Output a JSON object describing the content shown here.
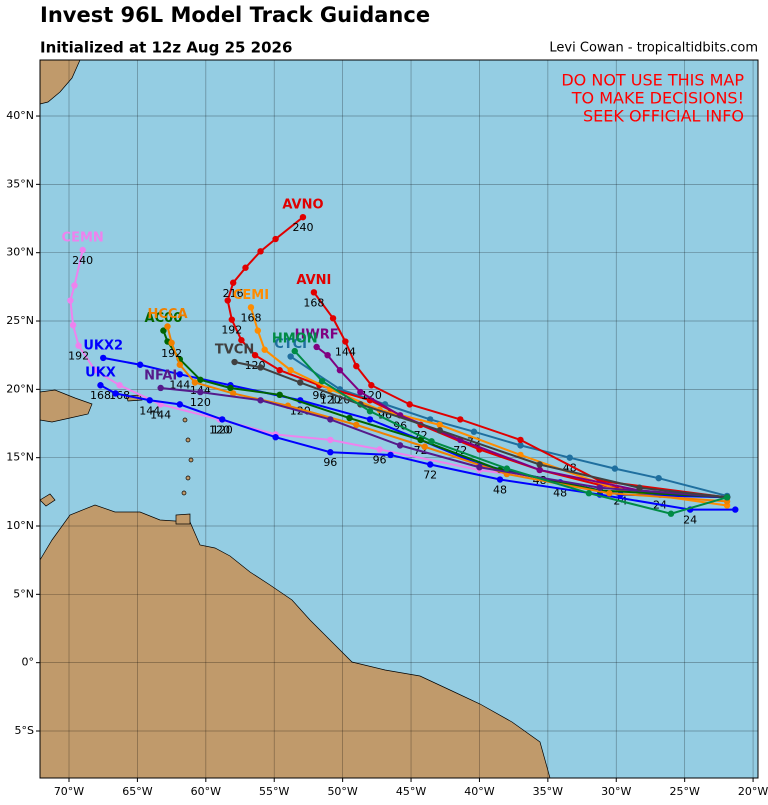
{
  "chart_data": {
    "type": "track-map",
    "title": "Invest 96L Model Track Guidance",
    "subtitle": "Initialized at 12z Aug 25 2026",
    "credit": "Levi Cowan - tropicaltidbits.com",
    "warning": [
      "DO NOT USE THIS MAP",
      "TO MAKE DECISIONS!",
      "SEEK OFFICIAL INFO"
    ],
    "xlim": [
      -72.12,
      -19.64
    ],
    "ylim": [
      -8.44,
      44.1
    ],
    "xticks": [
      {
        "value": -70,
        "label": "70°W"
      },
      {
        "value": -65,
        "label": "65°W"
      },
      {
        "value": -60,
        "label": "60°W"
      },
      {
        "value": -55,
        "label": "55°W"
      },
      {
        "value": -50,
        "label": "50°W"
      },
      {
        "value": -45,
        "label": "45°W"
      },
      {
        "value": -40,
        "label": "40°W"
      },
      {
        "value": -35,
        "label": "35°W"
      },
      {
        "value": -30,
        "label": "30°W"
      },
      {
        "value": -25,
        "label": "25°W"
      },
      {
        "value": -20,
        "label": "20°W"
      }
    ],
    "yticks": [
      {
        "value": -5,
        "label": "5°S"
      },
      {
        "value": 0,
        "label": "0°"
      },
      {
        "value": 5,
        "label": "5°N"
      },
      {
        "value": 10,
        "label": "10°N"
      },
      {
        "value": 15,
        "label": "15°N"
      },
      {
        "value": 20,
        "label": "20°N"
      },
      {
        "value": 25,
        "label": "25°N"
      },
      {
        "value": 30,
        "label": "30°N"
      },
      {
        "value": 35,
        "label": "35°N"
      },
      {
        "value": 40,
        "label": "40°N"
      }
    ],
    "grid": true,
    "tracks": [
      {
        "name": "CTCI",
        "color": "#1f6f9f",
        "lon": [
          -21.9,
          -26.9,
          -30.1,
          -33.4,
          -37.0,
          -40.4,
          -43.6,
          -46.9,
          -50.2,
          -53.8
        ],
        "lat": [
          12.2,
          13.5,
          14.2,
          15.0,
          15.9,
          16.9,
          17.8,
          18.9,
          20.0,
          22.4
        ],
        "hours": [
          null,
          null,
          null,
          48,
          null,
          72,
          null,
          96,
          120,
          null
        ]
      },
      {
        "name": "AVNO",
        "color": "#e00000",
        "lon": [
          -21.9,
          -26.8,
          -31.2,
          -35.6,
          -40.0,
          -44.3,
          -48.0,
          -51.7,
          -54.6,
          -56.4,
          -57.4,
          -58.1,
          -58.4,
          -58.0,
          -57.1,
          -56.0,
          -54.9,
          -52.9
        ],
        "lat": [
          12.1,
          12.3,
          13.0,
          14.1,
          15.6,
          17.4,
          19.2,
          20.3,
          21.4,
          22.5,
          23.6,
          25.1,
          26.5,
          27.8,
          28.9,
          30.1,
          31.0,
          32.6
        ],
        "hours": [
          null,
          24,
          null,
          48,
          null,
          72,
          null,
          96,
          null,
          120,
          null,
          192,
          null,
          216,
          null,
          null,
          null,
          240
        ]
      },
      {
        "name": "AVNI",
        "color": "#e00000",
        "lon": [
          -21.9,
          -31.2,
          -37.0,
          -41.4,
          -45.1,
          -47.9,
          -49.0,
          -49.8,
          -50.7,
          -52.1
        ],
        "lat": [
          12.1,
          13.3,
          16.3,
          17.8,
          18.9,
          20.3,
          21.7,
          23.5,
          25.2,
          27.1
        ],
        "hours": [
          null,
          null,
          null,
          null,
          null,
          120,
          null,
          144,
          null,
          168
        ]
      },
      {
        "name": "CEMN",
        "color": "#ee82ee",
        "lon": [
          -21.9,
          -31.2,
          -40.0,
          -47.3,
          -50.9,
          -54.9,
          -59.0,
          -63.3,
          -66.3,
          -68.1,
          -69.3,
          -69.7,
          -69.9,
          -69.6,
          -69.0
        ],
        "lat": [
          12.1,
          12.8,
          14.1,
          15.6,
          16.3,
          16.7,
          17.8,
          18.9,
          20.3,
          21.4,
          23.2,
          24.7,
          26.5,
          27.6,
          30.2
        ],
        "hours": [
          null,
          null,
          null,
          96,
          null,
          null,
          120,
          144,
          168,
          null,
          192,
          null,
          null,
          null,
          240
        ]
      },
      {
        "name": "CEMI",
        "color": "#ff8c00",
        "lon": [
          -21.9,
          -29.7,
          -37.0,
          -42.9,
          -47.3,
          -50.9,
          -53.8,
          -55.7,
          -56.2,
          -56.7
        ],
        "lat": [
          11.5,
          12.6,
          15.2,
          17.4,
          18.5,
          20.0,
          21.4,
          22.9,
          24.3,
          26.0
        ],
        "hours": [
          null,
          24,
          null,
          null,
          null,
          120,
          null,
          null,
          null,
          168
        ]
      },
      {
        "name": "HWRF",
        "color": "#800080",
        "lon": [
          -21.9,
          -28.3,
          -35.6,
          -41.4,
          -45.8,
          -48.7,
          -50.2,
          -51.1,
          -51.9
        ],
        "lat": [
          12.1,
          12.6,
          14.1,
          16.3,
          18.1,
          19.8,
          21.4,
          22.5,
          23.1
        ],
        "hours": [
          null,
          null,
          null,
          72,
          96,
          null,
          null,
          null,
          null
        ]
      },
      {
        "name": "UKX2",
        "color": "#0000ff",
        "lon": [
          -21.9,
          -29.7,
          -34.1,
          -40.0,
          -44.3,
          -48.0,
          -53.1,
          -58.2,
          -61.9,
          -64.8,
          -67.5
        ],
        "lat": [
          12.1,
          12.3,
          13.2,
          14.5,
          16.3,
          17.8,
          19.2,
          20.3,
          21.1,
          21.8,
          22.3
        ],
        "hours": [
          null,
          null,
          48,
          null,
          72,
          null,
          120,
          null,
          144,
          null,
          null
        ]
      },
      {
        "name": "UKX",
        "color": "#0000ff",
        "lon": [
          -21.3,
          -24.6,
          -31.2,
          -38.5,
          -43.6,
          -46.5,
          -50.9,
          -54.9,
          -58.8,
          -61.9,
          -64.1,
          -66.6,
          -67.7
        ],
        "lat": [
          11.2,
          11.2,
          12.3,
          13.4,
          14.5,
          15.2,
          15.4,
          16.5,
          17.8,
          18.9,
          19.2,
          19.7,
          20.3
        ],
        "hours": [
          null,
          24,
          null,
          48,
          72,
          null,
          96,
          null,
          120,
          null,
          144,
          null,
          168
        ]
      },
      {
        "name": "AC00",
        "color": "#006400",
        "lon": [
          -21.9,
          -31.2,
          -38.5,
          -44.3,
          -49.5,
          -54.6,
          -58.2,
          -60.4,
          -61.9,
          -62.8,
          -63.1
        ],
        "lat": [
          12.1,
          12.6,
          14.1,
          16.3,
          17.9,
          19.6,
          20.1,
          20.7,
          22.2,
          23.5,
          24.3
        ],
        "hours": [
          null,
          null,
          null,
          null,
          null,
          null,
          null,
          144,
          null,
          null,
          null
        ]
      },
      {
        "name": "HCCA",
        "color": "#f08000",
        "lon": [
          -21.9,
          -30.5,
          -38.0,
          -44.0,
          -49.0,
          -54.0,
          -58.0,
          -60.8,
          -61.9,
          -62.5,
          -62.8
        ],
        "lat": [
          11.8,
          12.4,
          13.8,
          15.8,
          17.4,
          18.8,
          19.7,
          20.5,
          21.8,
          23.4,
          24.6
        ],
        "hours": [
          null,
          null,
          null,
          null,
          null,
          null,
          null,
          null,
          null,
          192,
          null
        ]
      },
      {
        "name": "NFAI",
        "color": "#551a8b",
        "lon": [
          -21.9,
          -31.2,
          -40.0,
          -45.8,
          -50.9,
          -56.0,
          -60.4,
          -63.3
        ],
        "lat": [
          12.1,
          12.8,
          14.3,
          15.9,
          17.8,
          19.2,
          19.8,
          20.1
        ],
        "hours": [
          null,
          null,
          null,
          null,
          null,
          null,
          120,
          null
        ]
      },
      {
        "name": "TVCN",
        "color": "#404040",
        "lon": [
          -21.9,
          -28.3,
          -35.6,
          -42.9,
          -48.7,
          -53.1,
          -56.0,
          -57.9
        ],
        "lat": [
          12.1,
          12.8,
          14.5,
          17.0,
          18.9,
          20.5,
          21.6,
          22.0
        ],
        "hours": [
          null,
          null,
          null,
          null,
          null,
          null,
          null,
          null
        ]
      },
      {
        "name": "HMON",
        "color": "#008b45",
        "lon": [
          -21.9,
          -26.0,
          -32.0,
          -38.0,
          -43.5,
          -48.0,
          -51.5,
          -53.5
        ],
        "lat": [
          12.1,
          10.9,
          12.4,
          14.2,
          16.2,
          18.4,
          20.6,
          22.8
        ],
        "hours": [
          null,
          null,
          null,
          null,
          null,
          null,
          null,
          null
        ]
      }
    ]
  }
}
